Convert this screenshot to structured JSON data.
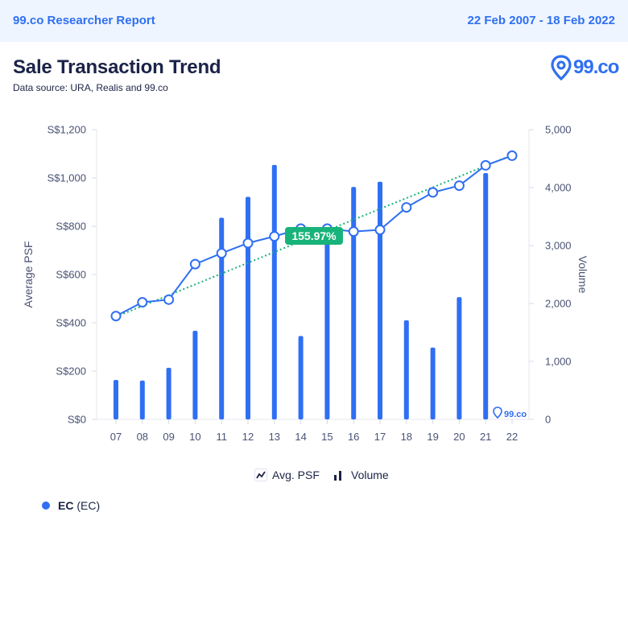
{
  "header": {
    "report_title": "99.co Researcher Report",
    "date_range": "22 Feb 2007 - 18 Feb 2022"
  },
  "page": {
    "title": "Sale Transaction Trend",
    "subtitle": "Data source: URA, Realis and 99.co",
    "brand": "99.co"
  },
  "legend": {
    "psf_label": "Avg. PSF",
    "volume_label": "Volume"
  },
  "series_key": {
    "name": "EC",
    "suffix": "(EC)"
  },
  "chart_data": {
    "type": "bar",
    "categories": [
      "07",
      "08",
      "09",
      "10",
      "11",
      "12",
      "13",
      "14",
      "15",
      "16",
      "17",
      "18",
      "19",
      "20",
      "21",
      "22"
    ],
    "series": [
      {
        "name": "Volume",
        "type": "bar",
        "axis": "right",
        "color": "#2f6ff3",
        "values": [
          680,
          670,
          890,
          1530,
          3480,
          3840,
          4390,
          1440,
          3310,
          4010,
          4100,
          1710,
          1240,
          2110,
          4250,
          0
        ]
      },
      {
        "name": "Avg. PSF",
        "type": "line",
        "axis": "left",
        "color": "#2f6ff3",
        "values": [
          428,
          485,
          496,
          643,
          688,
          730,
          758,
          790,
          790,
          778,
          785,
          878,
          940,
          968,
          1052,
          1092
        ]
      }
    ],
    "trendline": {
      "color": "#18b37a",
      "from": 425,
      "to": 1095,
      "label": "155.97%"
    },
    "ylabel": "Average PSF",
    "y2label": "Volume",
    "ylim": [
      0,
      1200
    ],
    "y2lim": [
      0,
      5000
    ],
    "yticks": [
      "S$0",
      "S$200",
      "S$400",
      "S$600",
      "S$800",
      "S$1,000",
      "S$1,200"
    ],
    "y2ticks": [
      "0",
      "1,000",
      "2,000",
      "3,000",
      "4,000",
      "5,000"
    ],
    "watermark": "99.co"
  }
}
